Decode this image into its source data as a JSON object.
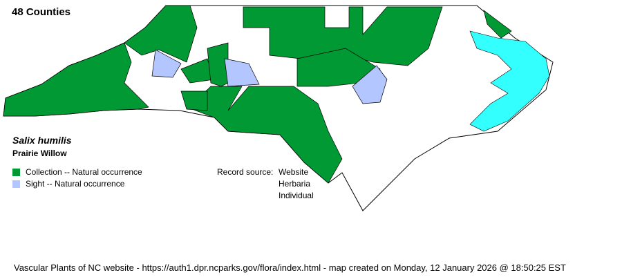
{
  "title": "48 Counties",
  "species": {
    "scientific_name": "Salix humilis",
    "common_name": "Prairie Willow"
  },
  "legend": [
    {
      "label": "Collection -- Natural occurrence",
      "color": "#009933"
    },
    {
      "label": "Sight -- Natural occurrence",
      "color": "#b3c6ff"
    }
  ],
  "record_source": {
    "label": "Record source:",
    "values": [
      "Website",
      "Herbaria",
      "Individual"
    ]
  },
  "water_color": "#33ffff",
  "footer": "Vascular Plants of NC website - https://auth1.dpr.ncparks.gov/flora/index.html - map created on Monday, 12 January 2026 @ 18:50:25 EST"
}
